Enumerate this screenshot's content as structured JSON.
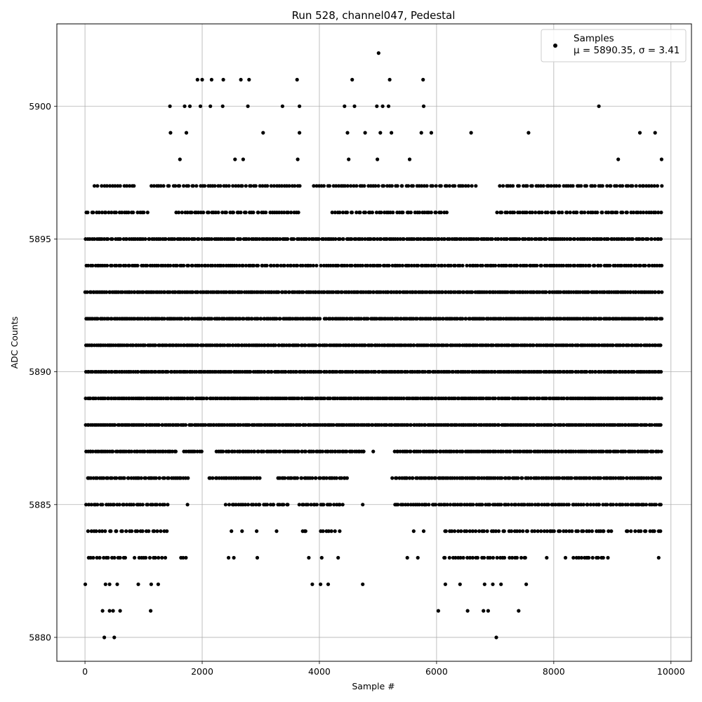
{
  "chart_data": {
    "type": "scatter",
    "title": "Run 528, channel047, Pedestal",
    "xlabel": "Sample #",
    "ylabel": "ADC Counts",
    "xlim": [
      -480,
      10350
    ],
    "ylim": [
      5879.1,
      5903.1
    ],
    "xticks": [
      0,
      2000,
      4000,
      6000,
      8000,
      10000
    ],
    "xtick_labels": [
      "0",
      "2000",
      "4000",
      "6000",
      "8000",
      "10000"
    ],
    "yticks": [
      5880,
      5885,
      5890,
      5895,
      5900
    ],
    "ytick_labels": [
      "5880",
      "5885",
      "5890",
      "5895",
      "5900"
    ],
    "grid": true,
    "legend": {
      "location": "upper right",
      "entries": [
        {
          "name": "Samples",
          "stats": "μ = 5890.35, σ = 3.41"
        }
      ]
    },
    "marker_color": "#000000",
    "series": [
      {
        "name": "Samples",
        "n_samples": 9850,
        "points": [
          [
            330,
            5880
          ],
          [
            500,
            5880
          ],
          [
            7020,
            5880
          ],
          [
            300,
            5881
          ],
          [
            420,
            5881
          ],
          [
            480,
            5881
          ],
          [
            600,
            5881
          ],
          [
            1120,
            5881
          ],
          [
            6030,
            5881
          ],
          [
            6530,
            5881
          ],
          [
            6800,
            5881
          ],
          [
            6880,
            5881
          ],
          [
            7400,
            5881
          ],
          [
            5,
            5882
          ],
          [
            350,
            5882
          ],
          [
            420,
            5882
          ],
          [
            550,
            5882
          ],
          [
            910,
            5882
          ],
          [
            1130,
            5882
          ],
          [
            1250,
            5882
          ],
          [
            3880,
            5882
          ],
          [
            4020,
            5882
          ],
          [
            4150,
            5882
          ],
          [
            4740,
            5882
          ],
          [
            6150,
            5882
          ],
          [
            6400,
            5882
          ],
          [
            6820,
            5882
          ],
          [
            6960,
            5882
          ],
          [
            7100,
            5882
          ],
          [
            7530,
            5882
          ],
          [
            2450,
            5883
          ],
          [
            2540,
            5883
          ],
          [
            2940,
            5883
          ],
          [
            3820,
            5883
          ],
          [
            4040,
            5883
          ],
          [
            4320,
            5883
          ],
          [
            5500,
            5883
          ],
          [
            5680,
            5883
          ],
          [
            6130,
            5883
          ],
          [
            7880,
            5883
          ],
          [
            8200,
            5883
          ],
          [
            8560,
            5883
          ],
          [
            9790,
            5883
          ],
          [
            2500,
            5884
          ],
          [
            2680,
            5884
          ],
          [
            2930,
            5884
          ],
          [
            3270,
            5884
          ],
          [
            3750,
            5884
          ],
          [
            5610,
            5884
          ],
          [
            5780,
            5884
          ],
          [
            7940,
            5884
          ],
          [
            8800,
            5884
          ],
          [
            9820,
            5884
          ],
          [
            1750,
            5885
          ],
          [
            2400,
            5885
          ],
          [
            4740,
            5885
          ],
          [
            5800,
            5885
          ],
          [
            9500,
            5885
          ],
          [
            4750,
            5887
          ],
          [
            4920,
            5887
          ],
          [
            1460,
            5899
          ],
          [
            1730,
            5899
          ],
          [
            3040,
            5899
          ],
          [
            3660,
            5899
          ],
          [
            4480,
            5899
          ],
          [
            4780,
            5899
          ],
          [
            5040,
            5899
          ],
          [
            5230,
            5899
          ],
          [
            5740,
            5899
          ],
          [
            5910,
            5899
          ],
          [
            6590,
            5899
          ],
          [
            7570,
            5899
          ],
          [
            9470,
            5899
          ],
          [
            9730,
            5899
          ],
          [
            1620,
            5898
          ],
          [
            2560,
            5898
          ],
          [
            2700,
            5898
          ],
          [
            3630,
            5898
          ],
          [
            4500,
            5898
          ],
          [
            4990,
            5898
          ],
          [
            5540,
            5898
          ],
          [
            9100,
            5898
          ],
          [
            9840,
            5898
          ],
          [
            1450,
            5900
          ],
          [
            1700,
            5900
          ],
          [
            1790,
            5900
          ],
          [
            1970,
            5900
          ],
          [
            2140,
            5900
          ],
          [
            2350,
            5900
          ],
          [
            2780,
            5900
          ],
          [
            3370,
            5900
          ],
          [
            3660,
            5900
          ],
          [
            4430,
            5900
          ],
          [
            4600,
            5900
          ],
          [
            4980,
            5900
          ],
          [
            5080,
            5900
          ],
          [
            5180,
            5900
          ],
          [
            5780,
            5900
          ],
          [
            8770,
            5900
          ],
          [
            1920,
            5901
          ],
          [
            2000,
            5901
          ],
          [
            2160,
            5901
          ],
          [
            2360,
            5901
          ],
          [
            2660,
            5901
          ],
          [
            2800,
            5901
          ],
          [
            3620,
            5901
          ],
          [
            4560,
            5901
          ],
          [
            5200,
            5901
          ],
          [
            5770,
            5901
          ],
          [
            5010,
            5902
          ]
        ],
        "dense_bands": [
          {
            "y": 5883,
            "ranges": [
              [
                40,
                720
              ],
              [
                840,
                1380
              ],
              [
                1610,
                1760
              ],
              [
                6140,
                7560
              ],
              [
                8300,
                8930
              ]
            ],
            "fill": 0.6
          },
          {
            "y": 5884,
            "ranges": [
              [
                40,
                1420
              ],
              [
                3700,
                3780
              ],
              [
                3990,
                4360
              ],
              [
                6100,
                9000
              ],
              [
                9200,
                9820
              ]
            ],
            "fill": 0.6
          },
          {
            "y": 5885,
            "ranges": [
              [
                10,
                1420
              ],
              [
                2450,
                3500
              ],
              [
                3640,
                4420
              ],
              [
                5260,
                6100
              ],
              [
                6100,
                9850
              ]
            ],
            "fill": 0.75
          },
          {
            "y": 5886,
            "ranges": [
              [
                30,
                1770
              ],
              [
                2100,
                3000
              ],
              [
                3270,
                4500
              ],
              [
                5240,
                9850
              ]
            ],
            "fill": 0.85
          },
          {
            "y": 5887,
            "ranges": [
              [
                0,
                1580
              ],
              [
                1680,
                2000
              ],
              [
                2230,
                3860
              ],
              [
                3860,
                4780
              ],
              [
                5270,
                9850
              ]
            ],
            "fill": 0.95
          },
          {
            "y": 5888,
            "ranges": [
              [
                0,
                1740
              ],
              [
                1760,
                2020
              ],
              [
                2020,
                5200
              ],
              [
                5200,
                9850
              ]
            ],
            "fill": 1
          },
          {
            "y": 5889,
            "ranges": [
              [
                0,
                2050
              ],
              [
                2050,
                5050
              ],
              [
                5050,
                9850
              ]
            ],
            "fill": 1
          },
          {
            "y": 5890,
            "ranges": [
              [
                0,
                9850
              ]
            ],
            "fill": 1
          },
          {
            "y": 5891,
            "ranges": [
              [
                0,
                4300
              ],
              [
                4300,
                6120
              ],
              [
                6120,
                9850
              ]
            ],
            "fill": 1
          },
          {
            "y": 5892,
            "ranges": [
              [
                0,
                4020
              ],
              [
                4080,
                6050
              ],
              [
                6050,
                9850
              ]
            ],
            "fill": 1
          },
          {
            "y": 5893,
            "ranges": [
              [
                0,
                9850
              ]
            ],
            "fill": 1
          },
          {
            "y": 5894,
            "ranges": [
              [
                0,
                1420
              ],
              [
                1420,
                3960
              ],
              [
                4020,
                6460
              ],
              [
                6510,
                9850
              ]
            ],
            "fill": 0.8
          },
          {
            "y": 5895,
            "ranges": [
              [
                0,
                3950
              ],
              [
                3950,
                9200
              ],
              [
                9200,
                9850
              ]
            ],
            "fill": 0.85
          },
          {
            "y": 5896,
            "ranges": [
              [
                0,
                1080
              ],
              [
                1550,
                3680
              ],
              [
                4210,
                6200
              ],
              [
                7020,
                9850
              ]
            ],
            "fill": 0.7
          },
          {
            "y": 5897,
            "ranges": [
              [
                160,
                870
              ],
              [
                1100,
                3700
              ],
              [
                3880,
                5920
              ],
              [
                5920,
                6680
              ],
              [
                7070,
                9850
              ]
            ],
            "fill": 0.65
          }
        ]
      }
    ]
  }
}
